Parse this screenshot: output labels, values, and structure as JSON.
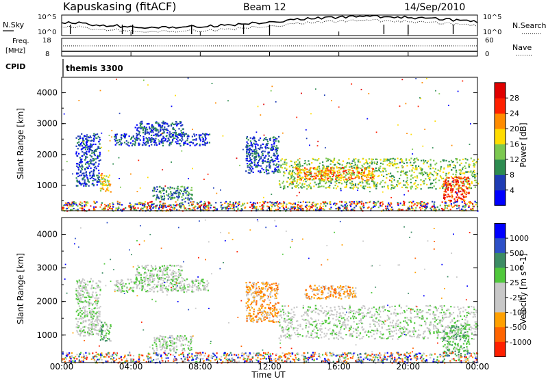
{
  "header": {
    "station": "Kapuskasing (fitACF)",
    "beam": "Beam 12",
    "date": "14/Sep/2010"
  },
  "summary_panels": {
    "nsky": {
      "label": "N.Sky",
      "ticks": [
        "10^5",
        "10^0"
      ],
      "right_ticks": [
        "10^5",
        "10^0"
      ],
      "right_label": "N.Search"
    },
    "freq": {
      "label_top": "Freq.",
      "label_bottom": "[MHz]",
      "ticks": [
        "18",
        "8"
      ],
      "right_ticks": [
        "60",
        "0"
      ],
      "right_label": "Nave"
    },
    "cpid": {
      "label": "CPID",
      "program": "themis 3300"
    }
  },
  "x_axis": {
    "label": "Time UT",
    "ticks": [
      "00:00",
      "04:00",
      "08:00",
      "12:00",
      "16:00",
      "20:00",
      "00:00"
    ]
  },
  "chart_data": [
    {
      "type": "heatmap",
      "name": "power",
      "xlabel": "Time UT",
      "ylabel": "Slant Range [km]",
      "xlim": [
        0,
        24
      ],
      "ylim": [
        180,
        4500
      ],
      "yticks": [
        1000,
        2000,
        3000,
        4000
      ],
      "colorbar": {
        "label": "Power [dB]",
        "ticks": [
          "4",
          "8",
          "12",
          "16",
          "20",
          "24",
          "28"
        ],
        "colors": [
          "#0000ff",
          "#1e3cb4",
          "#2d8c50",
          "#7cc850",
          "#ffdc00",
          "#ff8c00",
          "#ff2000",
          "#e00000"
        ]
      },
      "regions": [
        {
          "t": [
            0.8,
            2.2
          ],
          "r": [
            1000,
            2700
          ],
          "level": 1
        },
        {
          "t": [
            2.2,
            2.8
          ],
          "r": [
            800,
            1400
          ],
          "level": 4
        },
        {
          "t": [
            3.0,
            8.5
          ],
          "r": [
            2300,
            2700
          ],
          "level": 1
        },
        {
          "t": [
            4.2,
            7.0
          ],
          "r": [
            2700,
            3100
          ],
          "level": 1
        },
        {
          "t": [
            5.2,
            7.5
          ],
          "r": [
            550,
            1000
          ],
          "level": 2
        },
        {
          "t": [
            10.6,
            12.5
          ],
          "r": [
            1400,
            2600
          ],
          "level": 1
        },
        {
          "t": [
            12.5,
            24.0
          ],
          "r": [
            900,
            1900
          ],
          "level": 3
        },
        {
          "t": [
            13.5,
            18.0
          ],
          "r": [
            1200,
            1600
          ],
          "level": 5
        },
        {
          "t": [
            22.0,
            23.5
          ],
          "r": [
            500,
            1300
          ],
          "level": 6
        },
        {
          "t": [
            0.0,
            24.0
          ],
          "r": [
            190,
            500
          ],
          "level": 0
        }
      ]
    },
    {
      "type": "heatmap",
      "name": "velocity",
      "xlabel": "Time UT",
      "ylabel": "Slant Range [km]",
      "xlim": [
        0,
        24
      ],
      "ylim": [
        180,
        4500
      ],
      "yticks": [
        1000,
        2000,
        3000,
        4000
      ],
      "colorbar": {
        "label": "Velocity [m s^-1]",
        "ticks": [
          "1000",
          "500",
          "100",
          "25",
          "-25",
          "-100",
          "-500",
          "-1000"
        ],
        "colors": [
          "#0000ff",
          "#2d50c8",
          "#3c8c64",
          "#50c83c",
          "#c8c8c8",
          "#c8c8c8",
          "#ffa000",
          "#ff6400",
          "#ff2000"
        ]
      },
      "regions": [
        {
          "t": [
            0.8,
            2.2
          ],
          "r": [
            1000,
            2700
          ],
          "level": 4
        },
        {
          "t": [
            2.2,
            2.8
          ],
          "r": [
            800,
            1400
          ],
          "level": 3
        },
        {
          "t": [
            3.0,
            8.5
          ],
          "r": [
            2300,
            2700
          ],
          "level": 4
        },
        {
          "t": [
            4.2,
            7.0
          ],
          "r": [
            2700,
            3100
          ],
          "level": 4
        },
        {
          "t": [
            5.2,
            7.5
          ],
          "r": [
            550,
            1000
          ],
          "level": 4
        },
        {
          "t": [
            10.6,
            12.5
          ],
          "r": [
            1400,
            2600
          ],
          "level": 6
        },
        {
          "t": [
            12.5,
            24.0
          ],
          "r": [
            900,
            1900
          ],
          "level": 4
        },
        {
          "t": [
            14.0,
            17.0
          ],
          "r": [
            2100,
            2500
          ],
          "level": 6
        },
        {
          "t": [
            22.0,
            23.5
          ],
          "r": [
            500,
            1300
          ],
          "level": 3
        },
        {
          "t": [
            0.0,
            24.0
          ],
          "r": [
            190,
            500
          ],
          "level": 7
        }
      ]
    }
  ]
}
